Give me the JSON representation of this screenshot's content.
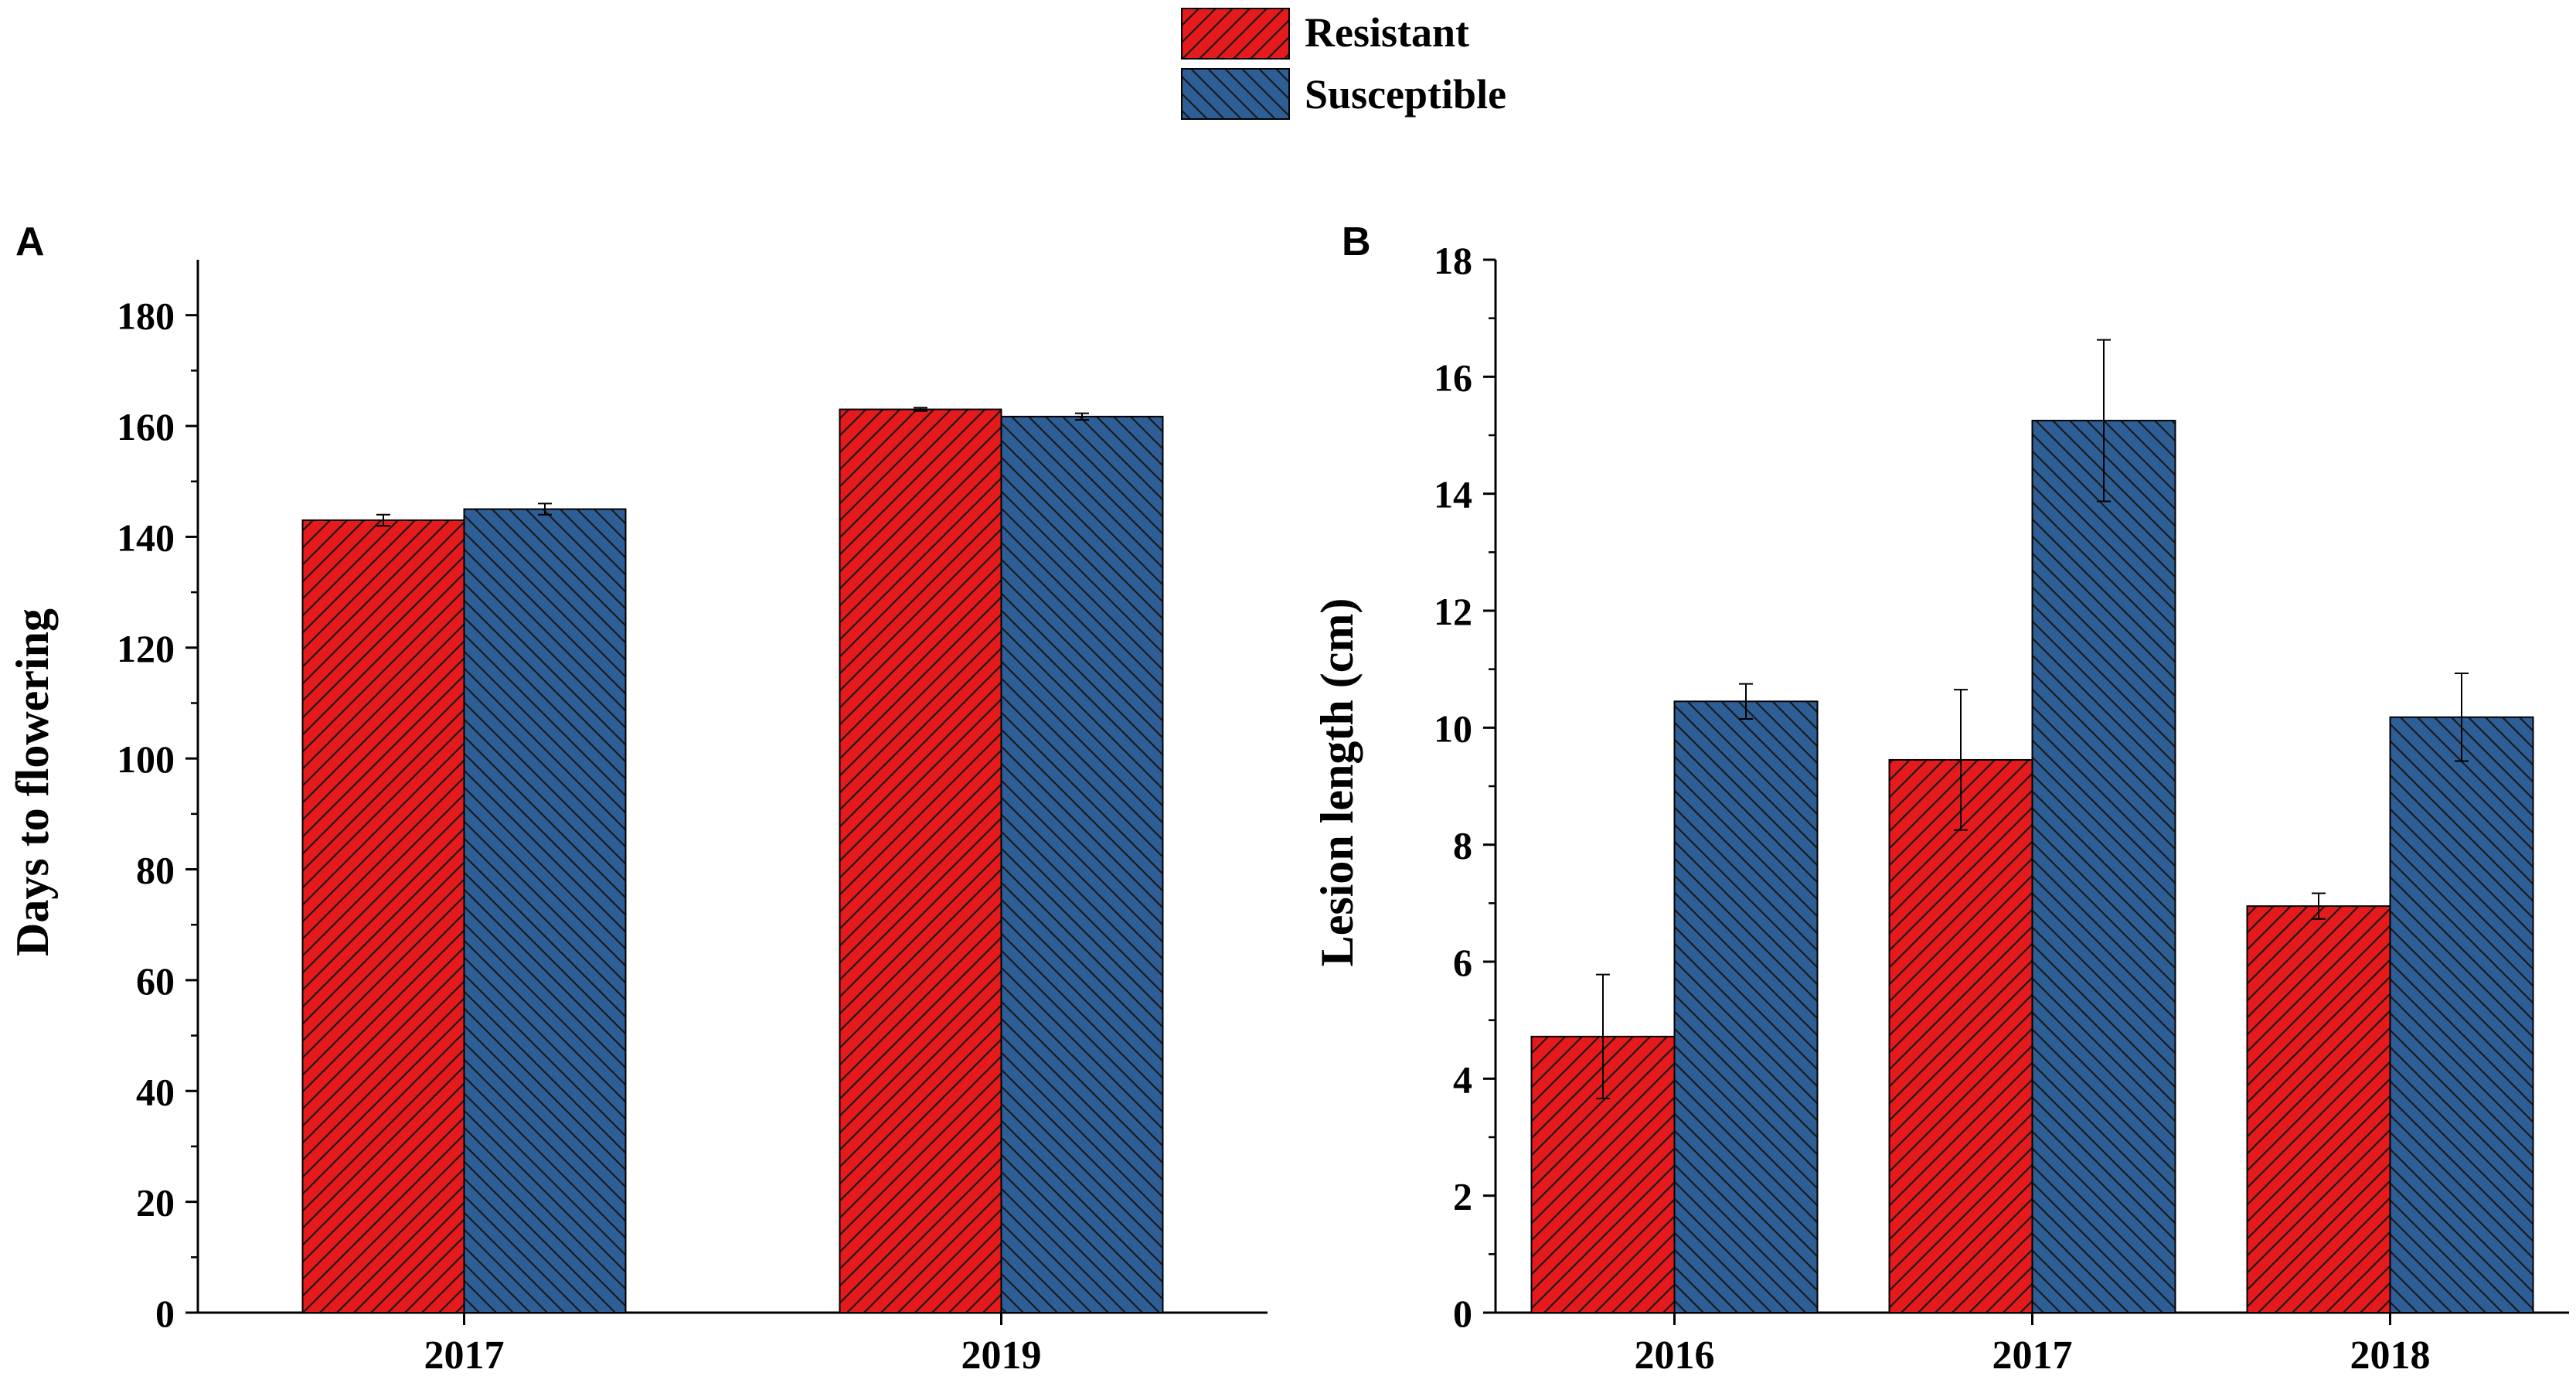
{
  "colors": {
    "resistant": "#e41a1c",
    "susceptible": "#2e5e96",
    "hatch": "#1a1a1a",
    "axis": "#000000"
  },
  "legend": {
    "items": [
      {
        "label": "Resistant",
        "series": "resistant"
      },
      {
        "label": "Susceptible",
        "series": "susceptible"
      }
    ]
  },
  "chart_data": [
    {
      "panel": "A",
      "type": "bar",
      "title": "",
      "xlabel": "",
      "ylabel": "Days to flowering",
      "ylim": [
        0,
        190
      ],
      "yticks": [
        0,
        20,
        40,
        60,
        80,
        100,
        120,
        140,
        160,
        180
      ],
      "categories": [
        "2017",
        "2019"
      ],
      "series": [
        {
          "name": "Resistant",
          "key": "resistant",
          "values": [
            143,
            163
          ],
          "errors": [
            1,
            0.3
          ]
        },
        {
          "name": "Susceptible",
          "key": "susceptible",
          "values": [
            145,
            161.7
          ],
          "errors": [
            1,
            0.6
          ]
        }
      ]
    },
    {
      "panel": "B",
      "type": "bar",
      "title": "",
      "xlabel": "",
      "ylabel": "Lesion length (cm)",
      "ylim": [
        0,
        18
      ],
      "yticks": [
        0,
        2,
        4,
        6,
        8,
        10,
        12,
        14,
        16,
        18
      ],
      "categories": [
        "2016",
        "2017",
        "2018"
      ],
      "series": [
        {
          "name": "Resistant",
          "key": "resistant",
          "values": [
            4.72,
            9.45,
            6.95
          ],
          "errors": [
            1.06,
            1.2,
            0.22
          ]
        },
        {
          "name": "Susceptible",
          "key": "susceptible",
          "values": [
            10.45,
            15.25,
            10.18
          ],
          "errors": [
            0.3,
            1.38,
            0.75
          ]
        }
      ]
    }
  ]
}
